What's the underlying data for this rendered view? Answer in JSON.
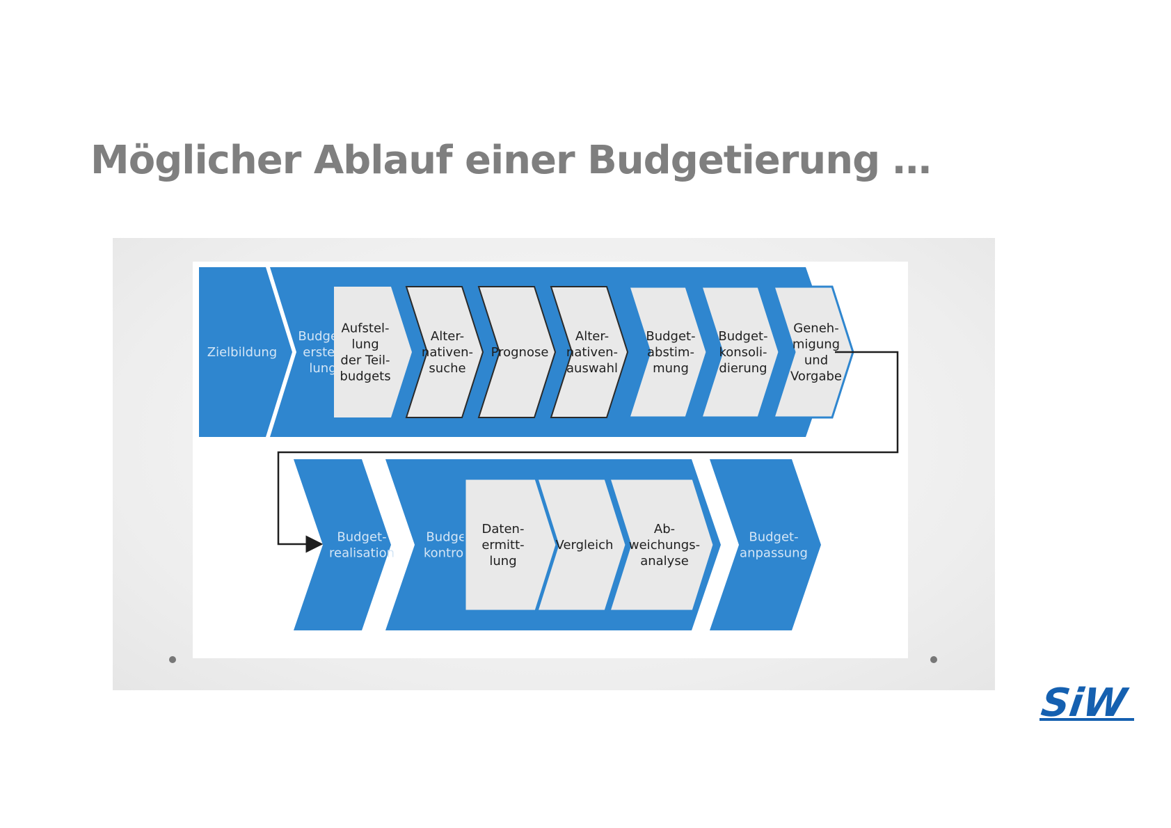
{
  "slide": {
    "title": "Möglicher Ablauf einer Budgetierung …"
  },
  "diagram": {
    "row1": {
      "zielbildung": [
        "Zielbildung"
      ],
      "budgeterstellung": [
        "Budget-",
        "erstel-",
        "lung"
      ],
      "steps": [
        [
          "Aufstel-",
          "lung",
          "der Teil-",
          "budgets"
        ],
        [
          "Alter-",
          "nativen-",
          "suche"
        ],
        [
          "Prognose"
        ],
        [
          "Alter-",
          "nativen-",
          "auswahl"
        ],
        [
          "Budget-",
          "abstim-",
          "mung"
        ],
        [
          "Budget-",
          "konsoli-",
          "dierung"
        ],
        [
          "Geneh-",
          "migung",
          "und",
          "Vorgabe"
        ]
      ]
    },
    "row2": {
      "realisation": [
        "Budget-",
        "realisation"
      ],
      "kontrolle": [
        "Budget-",
        "kontrolle"
      ],
      "steps": [
        [
          "Daten-",
          "ermitt-",
          "lung"
        ],
        [
          "Vergleich"
        ],
        [
          "Ab-",
          "weichungs-",
          "analyse"
        ]
      ],
      "anpassung": [
        "Budget-",
        "anpassung"
      ]
    }
  },
  "colors": {
    "title": "#7f7f7f",
    "blue": "#2f86cf",
    "step_fill": "#e9e9e9",
    "label_on_blue": "#d4e6f6",
    "label_dark": "#1e1e1e",
    "logo": "#1560b0"
  },
  "logo": {
    "name": "siw-logo",
    "text": "SiW"
  }
}
